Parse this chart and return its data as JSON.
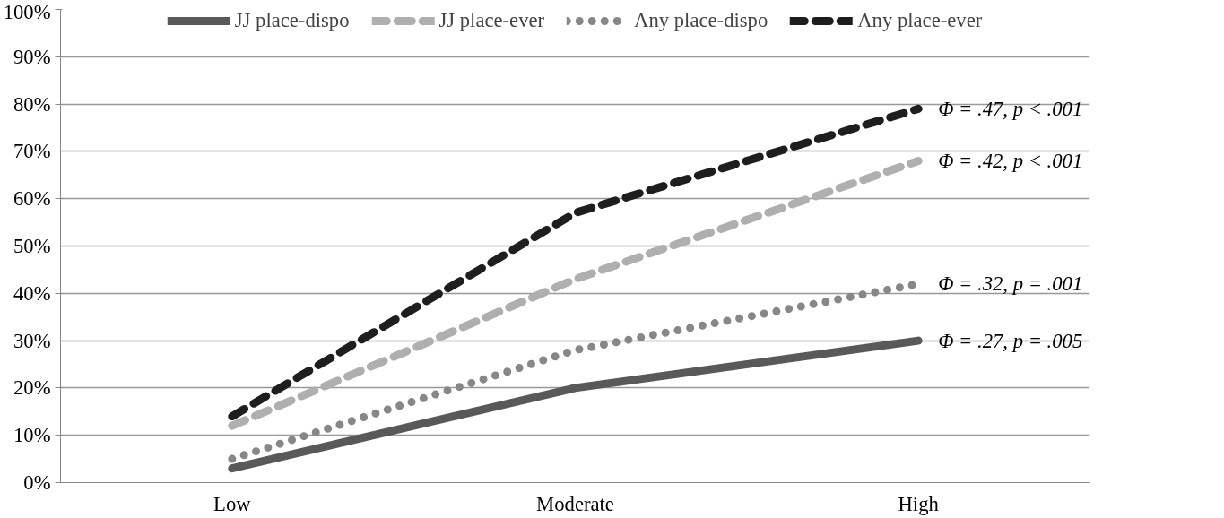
{
  "chart_data": {
    "type": "line",
    "categories": [
      "Low",
      "Moderate",
      "High"
    ],
    "series": [
      {
        "name": "JJ place-dispo",
        "color": "#595959",
        "line_style": "solid",
        "values": [
          3,
          20,
          30
        ]
      },
      {
        "name": "JJ place-ever",
        "color": "#afafaf",
        "line_style": "dashed",
        "values": [
          12,
          43,
          68
        ]
      },
      {
        "name": "Any place-dispo",
        "color": "#878787",
        "line_style": "dotted",
        "values": [
          5,
          28,
          42
        ]
      },
      {
        "name": "Any place-ever",
        "color": "#1e1e1e",
        "line_style": "dashed",
        "values": [
          14,
          57,
          79
        ]
      }
    ],
    "ylim": [
      0,
      100
    ],
    "yticks": [
      {
        "value": 0,
        "label": "0%"
      },
      {
        "value": 10,
        "label": "10%"
      },
      {
        "value": 20,
        "label": "20%"
      },
      {
        "value": 30,
        "label": "30%"
      },
      {
        "value": 40,
        "label": "40%"
      },
      {
        "value": 50,
        "label": "50%"
      },
      {
        "value": 60,
        "label": "60%"
      },
      {
        "value": 70,
        "label": "70%"
      },
      {
        "value": 80,
        "label": "80%"
      },
      {
        "value": 90,
        "label": "90%"
      },
      {
        "value": 100,
        "label": "100%"
      }
    ],
    "annotations": [
      {
        "text": "Φ = .47, p < .001",
        "x": "High",
        "y": 79
      },
      {
        "text": "Φ = .42, p < .001",
        "x": "High",
        "y": 68
      },
      {
        "text": "Φ = .32, p = .001",
        "x": "High",
        "y": 42
      },
      {
        "text": "Φ = .27, p = .005",
        "x": "High",
        "y": 30
      }
    ],
    "grid": "y",
    "legend": "top",
    "marker": "none"
  }
}
